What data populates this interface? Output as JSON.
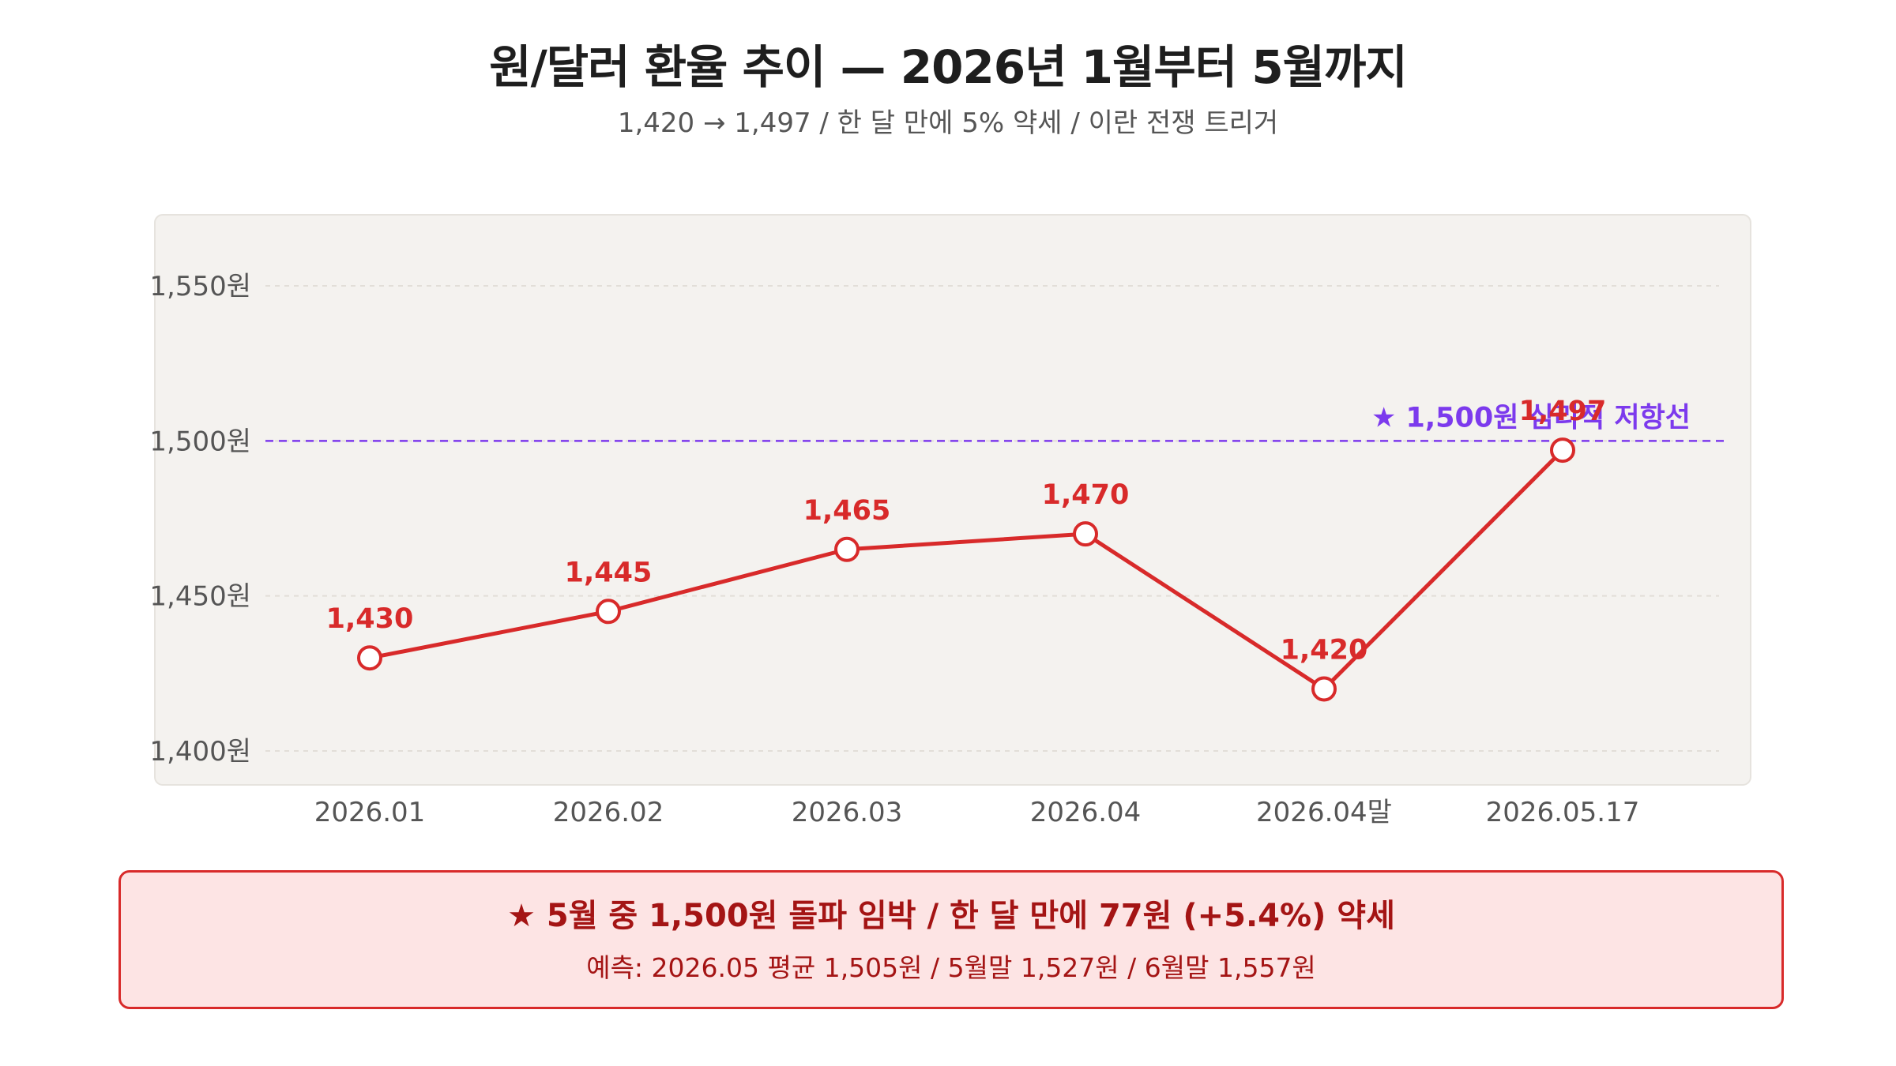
{
  "header": {
    "title": "원/달러 환율 추이 — 2026년 1월부터 5월까지",
    "subtitle": "1,420 → 1,497 / 한 달 만에 5% 약세 / 이란 전쟁 트리거"
  },
  "chart_data": {
    "type": "line",
    "categories": [
      "2026.01",
      "2026.02",
      "2026.03",
      "2026.04",
      "2026.04말",
      "2026.05.17"
    ],
    "series": [
      {
        "values": [
          1430,
          1445,
          1465,
          1470,
          1420,
          1497
        ],
        "color": "#d82a2a"
      }
    ],
    "data_labels": [
      "1,430",
      "1,445",
      "1,465",
      "1,470",
      "1,420",
      "1,497"
    ],
    "ylim": [
      1400,
      1550
    ],
    "yticks": [
      1400,
      1450,
      1500,
      1550
    ],
    "ytick_labels": [
      "1,400원",
      "1,450원",
      "1,500원",
      "1,550원"
    ],
    "reference_line": {
      "value": 1500,
      "label": "★ 1,500원 심리적 저항선",
      "color": "#7c3aed",
      "style": "dashed"
    },
    "grid": true,
    "plot_background": "#f4f2ef"
  },
  "summary": {
    "headline": "★ 5월 중 1,500원 돌파 임박 / 한 달 만에 77원 (+5.4%) 약세",
    "forecast": "예측: 2026.05 평균 1,505원 / 5월말 1,527원 / 6월말 1,557원",
    "background": "#fde4e4",
    "border": "#d82a2a"
  }
}
